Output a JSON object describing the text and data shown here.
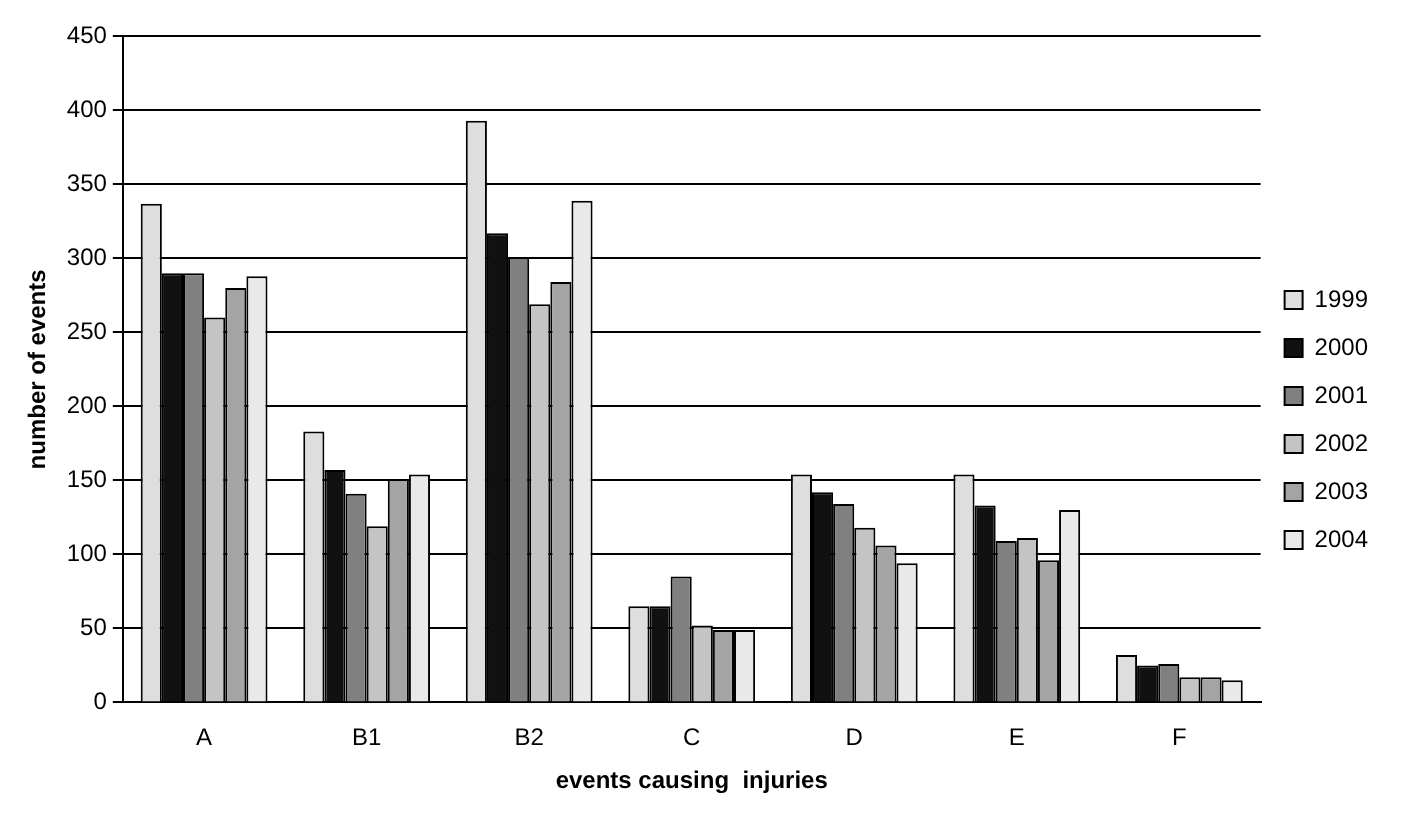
{
  "chart_data": {
    "type": "bar",
    "xlabel": "events causing  injuries",
    "ylabel": "number of events",
    "categories": [
      "A",
      "B1",
      "B2",
      "C",
      "D",
      "E",
      "F"
    ],
    "series": [
      {
        "name": "1999",
        "color": "#dedede",
        "values": [
          337,
          183,
          393,
          65,
          154,
          154,
          32
        ]
      },
      {
        "name": "2000",
        "color": "#111111",
        "values": [
          290,
          157,
          317,
          65,
          142,
          133,
          25
        ]
      },
      {
        "name": "2001",
        "color": "#808080",
        "values": [
          290,
          141,
          301,
          85,
          134,
          109,
          26
        ]
      },
      {
        "name": "2002",
        "color": "#c4c4c4",
        "values": [
          260,
          119,
          269,
          52,
          118,
          111,
          17
        ]
      },
      {
        "name": "2003",
        "color": "#a4a4a4",
        "values": [
          280,
          151,
          284,
          49,
          106,
          96,
          17
        ]
      },
      {
        "name": "2004",
        "color": "#e9e9e9",
        "values": [
          288,
          154,
          339,
          49,
          94,
          130,
          15
        ]
      }
    ],
    "ylim": [
      0,
      450
    ],
    "yticks": [
      0,
      50,
      100,
      150,
      200,
      250,
      300,
      350,
      400,
      450
    ],
    "grid": "y",
    "legend": "right"
  }
}
